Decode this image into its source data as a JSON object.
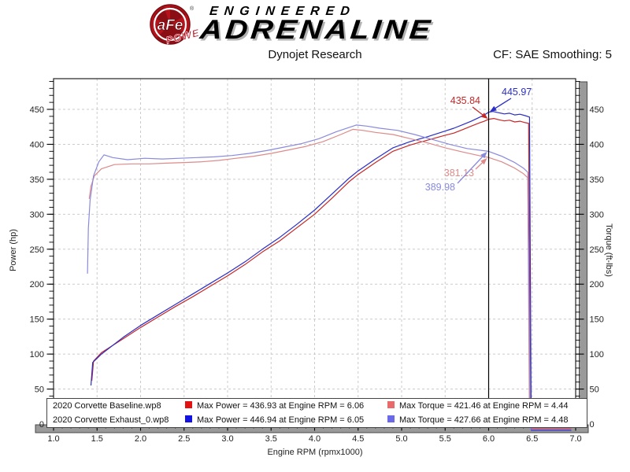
{
  "header": {
    "logo": {
      "badge_text": "aFe",
      "power_text": "POWER",
      "reg_mark": "®",
      "line1": "ENGINEERED",
      "line2": "ADRENALINE"
    },
    "subtitle": "Dynojet Research",
    "cf_text": "CF: SAE Smoothing: 5"
  },
  "chart_data": {
    "type": "line",
    "xlabel": "Engine RPM (rpmx1000)",
    "ylabel_left": "Power (hp)",
    "ylabel_right": "Torque (ft-lbs)",
    "xlim": [
      1.0,
      7.0
    ],
    "ylim": [
      0,
      490
    ],
    "grid": true,
    "x_ticks": [
      "1.0",
      "1.5",
      "2.0",
      "2.5",
      "3.0",
      "3.5",
      "4.0",
      "4.5",
      "5.0",
      "5.5",
      "6.0",
      "6.5",
      "7.0"
    ],
    "y_ticks": [
      50,
      100,
      150,
      200,
      250,
      300,
      350,
      400,
      450
    ],
    "zero_label": "0",
    "cursor_rpm": 6.0,
    "series": [
      {
        "id": "baseline-power",
        "name": "2020 Corvette Baseline.wp8 Power",
        "color": "#c62828",
        "axis": "left",
        "points": [
          [
            1.44,
            62
          ],
          [
            1.46,
            90
          ],
          [
            1.55,
            102
          ],
          [
            1.8,
            122
          ],
          [
            2.0,
            138
          ],
          [
            2.2,
            153
          ],
          [
            2.4,
            168
          ],
          [
            2.6,
            182
          ],
          [
            2.8,
            197
          ],
          [
            3.0,
            212
          ],
          [
            3.2,
            228
          ],
          [
            3.4,
            246
          ],
          [
            3.6,
            262
          ],
          [
            3.8,
            281
          ],
          [
            4.0,
            300
          ],
          [
            4.2,
            323
          ],
          [
            4.4,
            347
          ],
          [
            4.5,
            357
          ],
          [
            4.7,
            374
          ],
          [
            4.9,
            390
          ],
          [
            5.1,
            399
          ],
          [
            5.3,
            406
          ],
          [
            5.5,
            413
          ],
          [
            5.6,
            416
          ],
          [
            5.7,
            421
          ],
          [
            5.8,
            426
          ],
          [
            5.9,
            431
          ],
          [
            5.95,
            433
          ],
          [
            6.0,
            435.84
          ],
          [
            6.06,
            436.93
          ],
          [
            6.12,
            435
          ],
          [
            6.18,
            433.5
          ],
          [
            6.24,
            434.5
          ],
          [
            6.3,
            432
          ],
          [
            6.36,
            433
          ],
          [
            6.42,
            431
          ],
          [
            6.46,
            430
          ],
          [
            6.48,
            2
          ],
          [
            6.7,
            2
          ],
          [
            6.95,
            2
          ]
        ]
      },
      {
        "id": "exhaust-power",
        "name": "2020 Corvette Exhaust_0.wp8 Power",
        "color": "#2a2ec4",
        "axis": "left",
        "points": [
          [
            1.43,
            55
          ],
          [
            1.45,
            88
          ],
          [
            1.55,
            100
          ],
          [
            1.8,
            124
          ],
          [
            2.0,
            141
          ],
          [
            2.2,
            156
          ],
          [
            2.4,
            171
          ],
          [
            2.6,
            186
          ],
          [
            2.8,
            201
          ],
          [
            3.0,
            216
          ],
          [
            3.2,
            232
          ],
          [
            3.4,
            250
          ],
          [
            3.6,
            267
          ],
          [
            3.8,
            286
          ],
          [
            4.0,
            306
          ],
          [
            4.2,
            329
          ],
          [
            4.4,
            352
          ],
          [
            4.5,
            362
          ],
          [
            4.7,
            379
          ],
          [
            4.9,
            395
          ],
          [
            5.1,
            404
          ],
          [
            5.3,
            411
          ],
          [
            5.5,
            419
          ],
          [
            5.6,
            423
          ],
          [
            5.7,
            428
          ],
          [
            5.8,
            433
          ],
          [
            5.9,
            439
          ],
          [
            5.95,
            442
          ],
          [
            6.0,
            445.97
          ],
          [
            6.05,
            446.94
          ],
          [
            6.12,
            445
          ],
          [
            6.18,
            443.5
          ],
          [
            6.24,
            444.5
          ],
          [
            6.3,
            442
          ],
          [
            6.36,
            443
          ],
          [
            6.42,
            441
          ],
          [
            6.47,
            439
          ],
          [
            6.49,
            3
          ],
          [
            6.7,
            3
          ],
          [
            6.95,
            3
          ]
        ]
      },
      {
        "id": "baseline-torque",
        "name": "2020 Corvette Baseline.wp8 Torque",
        "color": "#dd8a8a",
        "axis": "right",
        "points": [
          [
            1.41,
            322
          ],
          [
            1.43,
            340
          ],
          [
            1.47,
            355
          ],
          [
            1.55,
            365
          ],
          [
            1.7,
            371
          ],
          [
            1.9,
            372
          ],
          [
            2.1,
            372
          ],
          [
            2.3,
            373
          ],
          [
            2.5,
            374
          ],
          [
            2.7,
            375
          ],
          [
            2.9,
            377
          ],
          [
            3.1,
            380
          ],
          [
            3.3,
            383
          ],
          [
            3.5,
            387
          ],
          [
            3.7,
            392
          ],
          [
            3.9,
            397
          ],
          [
            4.1,
            404
          ],
          [
            4.3,
            414
          ],
          [
            4.44,
            421.46
          ],
          [
            4.55,
            420
          ],
          [
            4.7,
            417
          ],
          [
            4.9,
            414
          ],
          [
            5.1,
            408
          ],
          [
            5.3,
            402
          ],
          [
            5.5,
            395
          ],
          [
            5.7,
            389
          ],
          [
            5.9,
            383.5
          ],
          [
            6.0,
            381.13
          ],
          [
            6.15,
            375
          ],
          [
            6.3,
            366
          ],
          [
            6.4,
            358
          ],
          [
            6.45,
            352
          ],
          [
            6.47,
            1
          ],
          [
            6.7,
            1
          ],
          [
            6.95,
            1
          ]
        ]
      },
      {
        "id": "exhaust-torque",
        "name": "2020 Corvette Exhaust_0.wp8 Torque",
        "color": "#8a8add",
        "axis": "right",
        "points": [
          [
            1.39,
            215
          ],
          [
            1.4,
            280
          ],
          [
            1.42,
            320
          ],
          [
            1.46,
            355
          ],
          [
            1.52,
            375
          ],
          [
            1.58,
            385
          ],
          [
            1.68,
            381
          ],
          [
            1.85,
            378
          ],
          [
            2.05,
            380
          ],
          [
            2.25,
            379
          ],
          [
            2.45,
            380
          ],
          [
            2.65,
            381
          ],
          [
            2.85,
            382
          ],
          [
            3.05,
            384
          ],
          [
            3.25,
            387
          ],
          [
            3.45,
            391
          ],
          [
            3.65,
            396
          ],
          [
            3.85,
            401
          ],
          [
            4.05,
            408
          ],
          [
            4.25,
            418
          ],
          [
            4.48,
            427.66
          ],
          [
            4.6,
            426
          ],
          [
            4.75,
            423
          ],
          [
            4.95,
            420
          ],
          [
            5.15,
            414
          ],
          [
            5.35,
            407
          ],
          [
            5.55,
            400
          ],
          [
            5.75,
            394
          ],
          [
            6.0,
            389.98
          ],
          [
            6.15,
            383
          ],
          [
            6.3,
            374
          ],
          [
            6.4,
            366
          ],
          [
            6.45,
            360
          ],
          [
            6.48,
            2
          ],
          [
            6.7,
            2
          ],
          [
            6.95,
            2
          ]
        ]
      }
    ],
    "annotations": [
      {
        "text": "435.84",
        "color": "#c62828",
        "at_rpm": 6.0,
        "value": 435.84
      },
      {
        "text": "445.97",
        "color": "#2a2ec4",
        "at_rpm": 6.0,
        "value": 445.97
      },
      {
        "text": "381.13",
        "color": "#dd8a8a",
        "at_rpm": 6.0,
        "value": 381.13
      },
      {
        "text": "389.98",
        "color": "#8a8add",
        "at_rpm": 6.0,
        "value": 389.98
      }
    ]
  },
  "legend": {
    "rows": [
      {
        "file": "2020 Corvette Baseline.wp8",
        "power_color": "#e31212",
        "power_text": "Max Power = 436.93 at Engine RPM = 6.06",
        "torque_color": "#e86a6a",
        "torque_text": "Max Torque = 421.46 at Engine RPM = 4.44"
      },
      {
        "file": "2020 Corvette Exhaust_0.wp8",
        "power_color": "#1212e3",
        "power_text": "Max Power = 446.94 at Engine RPM = 6.05",
        "torque_color": "#6a6ae8",
        "torque_text": "Max Torque = 427.66 at Engine RPM = 4.48"
      }
    ]
  }
}
